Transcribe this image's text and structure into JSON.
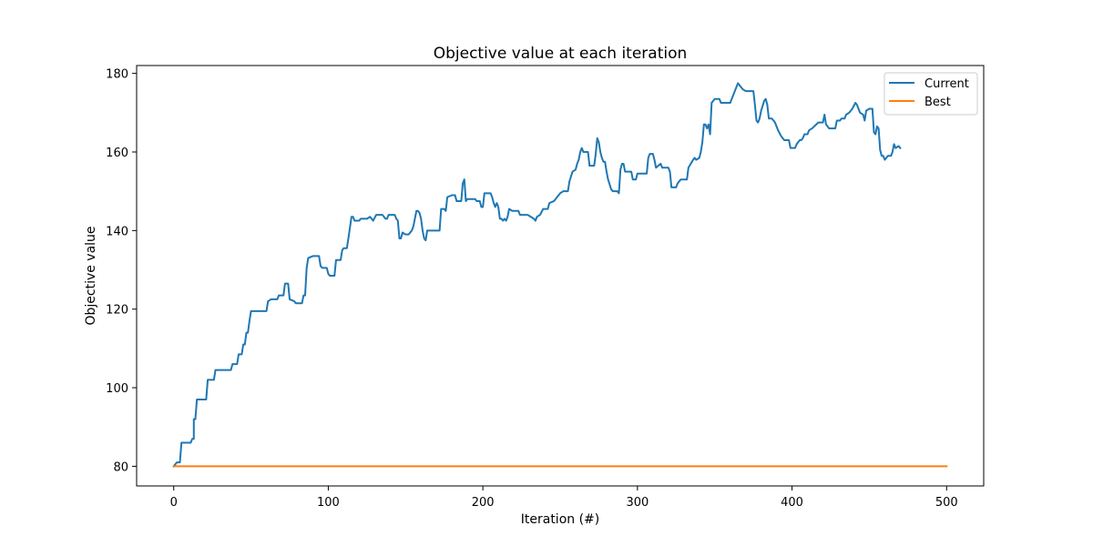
{
  "chart_data": {
    "type": "line",
    "title": "Objective value at each iteration",
    "xlabel": "Iteration (#)",
    "ylabel": "Objective value",
    "xlim": [
      -24,
      524
    ],
    "ylim": [
      75,
      182
    ],
    "xticks": [
      0,
      100,
      200,
      300,
      400,
      500
    ],
    "yticks": [
      80,
      100,
      120,
      140,
      160,
      180
    ],
    "grid": false,
    "legend_position": "top-right",
    "series": [
      {
        "name": "Current",
        "color": "#1f77b4",
        "points": [
          [
            0,
            80
          ],
          [
            2,
            81
          ],
          [
            4,
            81
          ],
          [
            5,
            86
          ],
          [
            8,
            86
          ],
          [
            11,
            86
          ],
          [
            12,
            87
          ],
          [
            13,
            87
          ],
          [
            13,
            92
          ],
          [
            14,
            92
          ],
          [
            15,
            97
          ],
          [
            17,
            97
          ],
          [
            21,
            97
          ],
          [
            22,
            102
          ],
          [
            26,
            102
          ],
          [
            27,
            104.5
          ],
          [
            33,
            104.5
          ],
          [
            37,
            104.5
          ],
          [
            38,
            106
          ],
          [
            41,
            106
          ],
          [
            42,
            108.5
          ],
          [
            44,
            108.5
          ],
          [
            45,
            111
          ],
          [
            46,
            111
          ],
          [
            47,
            114
          ],
          [
            48,
            114
          ],
          [
            49,
            117
          ],
          [
            50,
            119.5
          ],
          [
            56,
            119.5
          ],
          [
            60,
            119.5
          ],
          [
            61,
            122
          ],
          [
            63,
            122.5
          ],
          [
            67,
            122.5
          ],
          [
            68,
            123.5
          ],
          [
            71,
            123.5
          ],
          [
            72,
            126.5
          ],
          [
            74,
            126.5
          ],
          [
            75,
            122.5
          ],
          [
            78,
            122
          ],
          [
            79,
            121.5
          ],
          [
            83,
            121.5
          ],
          [
            84,
            123.5
          ],
          [
            85,
            123.5
          ],
          [
            86,
            130.5
          ],
          [
            87,
            133
          ],
          [
            90,
            133.5
          ],
          [
            94,
            133.5
          ],
          [
            95,
            131
          ],
          [
            96,
            130.5
          ],
          [
            99,
            130.5
          ],
          [
            100,
            129
          ],
          [
            101,
            128.5
          ],
          [
            104,
            128.5
          ],
          [
            105,
            132.5
          ],
          [
            106,
            132.5
          ],
          [
            108,
            132.5
          ],
          [
            109,
            135
          ],
          [
            110,
            135.5
          ],
          [
            112,
            135.5
          ],
          [
            113,
            138
          ],
          [
            115,
            143.5
          ],
          [
            116,
            143.5
          ],
          [
            117,
            142.5
          ],
          [
            120,
            142.5
          ],
          [
            121,
            143
          ],
          [
            125,
            143
          ],
          [
            127,
            143.5
          ],
          [
            129,
            142.5
          ],
          [
            131,
            144
          ],
          [
            135,
            144
          ],
          [
            137,
            143
          ],
          [
            138,
            143
          ],
          [
            139,
            144
          ],
          [
            143,
            144
          ],
          [
            144,
            143
          ],
          [
            145,
            142.5
          ],
          [
            146,
            138
          ],
          [
            147,
            138
          ],
          [
            148,
            139.5
          ],
          [
            150,
            139
          ],
          [
            152,
            139
          ],
          [
            154,
            140
          ],
          [
            155,
            141
          ],
          [
            156,
            143
          ],
          [
            157,
            145
          ],
          [
            158,
            145
          ],
          [
            159,
            144.5
          ],
          [
            160,
            143
          ],
          [
            161,
            140
          ],
          [
            162,
            138
          ],
          [
            163,
            137.5
          ],
          [
            164,
            140
          ],
          [
            168,
            140
          ],
          [
            172,
            140
          ],
          [
            173,
            145.5
          ],
          [
            175,
            145.5
          ],
          [
            176,
            145
          ],
          [
            177,
            148.5
          ],
          [
            180,
            149
          ],
          [
            182,
            149
          ],
          [
            183,
            147.5
          ],
          [
            186,
            147.5
          ],
          [
            187,
            152
          ],
          [
            188,
            153
          ],
          [
            189,
            147.5
          ],
          [
            190,
            148
          ],
          [
            195,
            148
          ],
          [
            196,
            147.5
          ],
          [
            198,
            147.5
          ],
          [
            199,
            146
          ],
          [
            200,
            146
          ],
          [
            201,
            149.5
          ],
          [
            205,
            149.5
          ],
          [
            206,
            148.5
          ],
          [
            207,
            147
          ],
          [
            208,
            146
          ],
          [
            209,
            147
          ],
          [
            210,
            146
          ],
          [
            211,
            143
          ],
          [
            212,
            143
          ],
          [
            213,
            142.5
          ],
          [
            214,
            143
          ],
          [
            215,
            142.5
          ],
          [
            216,
            143.5
          ],
          [
            217,
            145.5
          ],
          [
            219,
            145
          ],
          [
            223,
            145
          ],
          [
            224,
            144
          ],
          [
            229,
            144
          ],
          [
            231,
            143.5
          ],
          [
            233,
            143
          ],
          [
            234,
            142.5
          ],
          [
            235,
            143.5
          ],
          [
            237,
            144
          ],
          [
            239,
            145.5
          ],
          [
            242,
            145.5
          ],
          [
            243,
            147
          ],
          [
            246,
            147.5
          ],
          [
            248,
            148.5
          ],
          [
            250,
            149.5
          ],
          [
            252,
            150
          ],
          [
            255,
            150
          ],
          [
            256,
            152.5
          ],
          [
            258,
            155
          ],
          [
            260,
            155.5
          ],
          [
            261,
            157
          ],
          [
            262,
            158
          ],
          [
            263,
            160
          ],
          [
            264,
            161
          ],
          [
            265,
            160
          ],
          [
            268,
            160
          ],
          [
            269,
            156.5
          ],
          [
            272,
            156.5
          ],
          [
            273,
            159.5
          ],
          [
            274,
            163.5
          ],
          [
            275,
            162.5
          ],
          [
            276,
            160
          ],
          [
            277,
            158.5
          ],
          [
            278,
            157.5
          ],
          [
            279,
            157.5
          ],
          [
            280,
            155
          ],
          [
            281,
            153
          ],
          [
            283,
            150.5
          ],
          [
            284,
            150
          ],
          [
            287,
            150
          ],
          [
            288,
            149.5
          ],
          [
            289,
            155.5
          ],
          [
            290,
            157
          ],
          [
            291,
            157
          ],
          [
            292,
            155
          ],
          [
            293,
            155
          ],
          [
            296,
            155
          ],
          [
            297,
            153
          ],
          [
            299,
            153
          ],
          [
            300,
            154.5
          ],
          [
            303,
            154.5
          ],
          [
            305,
            154.5
          ],
          [
            306,
            154.5
          ],
          [
            307,
            158.5
          ],
          [
            308,
            159.5
          ],
          [
            310,
            159.5
          ],
          [
            311,
            158
          ],
          [
            312,
            156
          ],
          [
            315,
            157
          ],
          [
            316,
            156
          ],
          [
            319,
            156
          ],
          [
            320,
            156
          ],
          [
            321,
            155
          ],
          [
            322,
            151
          ],
          [
            325,
            151
          ],
          [
            326,
            152
          ],
          [
            328,
            153
          ],
          [
            331,
            153
          ],
          [
            332,
            153
          ],
          [
            333,
            156
          ],
          [
            336,
            158
          ],
          [
            337,
            158.5
          ],
          [
            338,
            158
          ],
          [
            340,
            158.5
          ],
          [
            341,
            160
          ],
          [
            342,
            162.5
          ],
          [
            343,
            167
          ],
          [
            344,
            167
          ],
          [
            345,
            166
          ],
          [
            346,
            167
          ],
          [
            347,
            164.5
          ],
          [
            348,
            172.5
          ],
          [
            350,
            173.5
          ],
          [
            353,
            173.5
          ],
          [
            354,
            172.5
          ],
          [
            356,
            172.5
          ],
          [
            360,
            172.5
          ],
          [
            361,
            173.5
          ],
          [
            363,
            175.5
          ],
          [
            364,
            176.5
          ],
          [
            365,
            177.5
          ],
          [
            366,
            177
          ],
          [
            368,
            176
          ],
          [
            370,
            175.5
          ],
          [
            373,
            175.5
          ],
          [
            375,
            175.5
          ],
          [
            376,
            172
          ],
          [
            377,
            168
          ],
          [
            378,
            167.5
          ],
          [
            379,
            168.5
          ],
          [
            380,
            170.5
          ],
          [
            382,
            173
          ],
          [
            383,
            173.5
          ],
          [
            384,
            172
          ],
          [
            385,
            168.5
          ],
          [
            387,
            168.5
          ],
          [
            389,
            167.5
          ],
          [
            391,
            165.5
          ],
          [
            393,
            164
          ],
          [
            395,
            163
          ],
          [
            398,
            163
          ],
          [
            399,
            161
          ],
          [
            401,
            161
          ],
          [
            402,
            161
          ],
          [
            403,
            162
          ],
          [
            405,
            163
          ],
          [
            406,
            163
          ],
          [
            407,
            163.5
          ],
          [
            408,
            164.5
          ],
          [
            410,
            164.5
          ],
          [
            411,
            165.5
          ],
          [
            413,
            166
          ],
          [
            417,
            167.5
          ],
          [
            420,
            167.5
          ],
          [
            421,
            169.5
          ],
          [
            422,
            167
          ],
          [
            424,
            166
          ],
          [
            428,
            166
          ],
          [
            429,
            168
          ],
          [
            431,
            168
          ],
          [
            432,
            168.5
          ],
          [
            434,
            168.5
          ],
          [
            435,
            169.5
          ],
          [
            437,
            170
          ],
          [
            439,
            171
          ],
          [
            441,
            172.5
          ],
          [
            442,
            172
          ],
          [
            443,
            171
          ],
          [
            444,
            170
          ],
          [
            446,
            169.5
          ],
          [
            447,
            168
          ],
          [
            448,
            170.5
          ],
          [
            450,
            171
          ],
          [
            451,
            171
          ],
          [
            452,
            171
          ],
          [
            453,
            165
          ],
          [
            454,
            164.5
          ],
          [
            455,
            166.5
          ],
          [
            456,
            166
          ],
          [
            457,
            160.5
          ],
          [
            458,
            159
          ],
          [
            459,
            159
          ],
          [
            460,
            158
          ],
          [
            461,
            158.5
          ],
          [
            462,
            159
          ],
          [
            464,
            159
          ],
          [
            465,
            160
          ],
          [
            466,
            162
          ],
          [
            467,
            161
          ],
          [
            469,
            161.5
          ],
          [
            470,
            161
          ]
        ]
      },
      {
        "name": "Best",
        "color": "#ff7f0e",
        "points": [
          [
            0,
            80
          ],
          [
            500,
            80
          ]
        ]
      }
    ]
  }
}
